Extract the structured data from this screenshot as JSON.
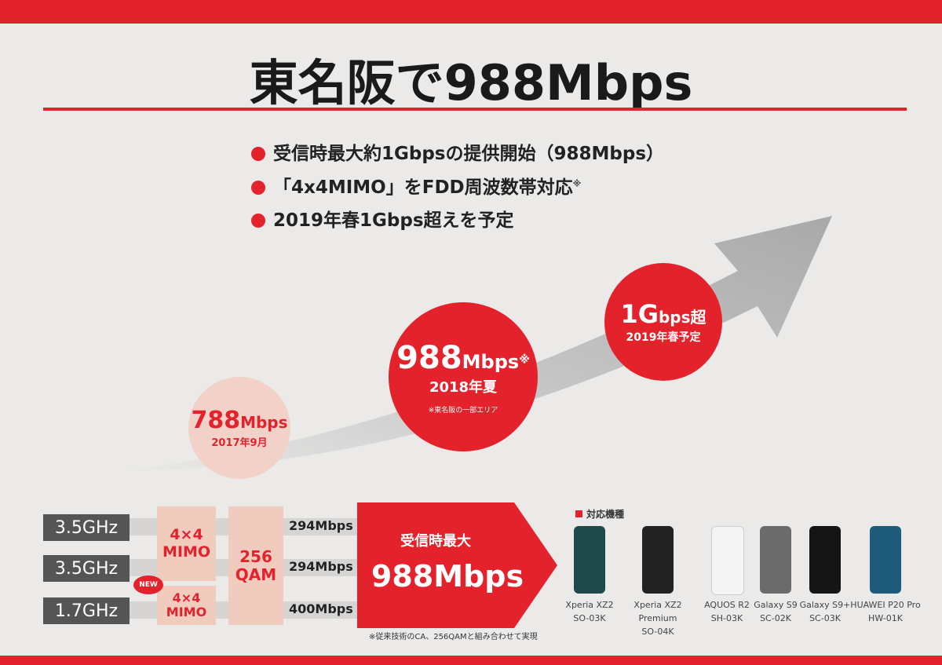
{
  "header": {
    "title": "東名阪で988Mbps"
  },
  "bullets": [
    "受信時最大約1Gbpsの提供開始（988Mbps）",
    "「4x4MIMO」をFDD周波数帯対応",
    "2019年春1Gbps超えを予定"
  ],
  "bullet_note": "※",
  "milestones": [
    {
      "value": "788",
      "unit": "Mbps",
      "date": "2017年9月"
    },
    {
      "value": "988",
      "unit": "Mbps",
      "mark": "※",
      "date": "2018年夏",
      "note": "※東名阪の一部エリア"
    },
    {
      "value": "1G",
      "unit": "bps超",
      "date": "2019年春予定"
    }
  ],
  "diagram": {
    "bands": [
      "3.5GHz",
      "3.5GHz",
      "1.7GHz"
    ],
    "mimo": [
      [
        "4×4",
        "MIMO"
      ],
      [
        "4×4",
        "MIMO"
      ]
    ],
    "new_badge": "NEW",
    "qam": [
      "256",
      "QAM"
    ],
    "rates": [
      "294Mbps",
      "294Mbps",
      "400Mbps"
    ],
    "result_label": "受信時最大",
    "result": "988Mbps",
    "footnote": "※従来技術のCA、256QAMと組み合わせて実現"
  },
  "devices": {
    "heading": "対応機種",
    "items": [
      {
        "name": "Xperia XZ2",
        "model": "SO-03K"
      },
      {
        "name": "Xperia XZ2 Premium",
        "model": "SO-04K"
      },
      {
        "name": "AQUOS R2",
        "model": "SH-03K"
      },
      {
        "name": "Galaxy S9",
        "model": "SC-02K"
      },
      {
        "name": "Galaxy S9+",
        "model": "SC-03K"
      },
      {
        "name": "HUAWEI P20 Pro",
        "model": "HW-01K"
      }
    ]
  }
}
